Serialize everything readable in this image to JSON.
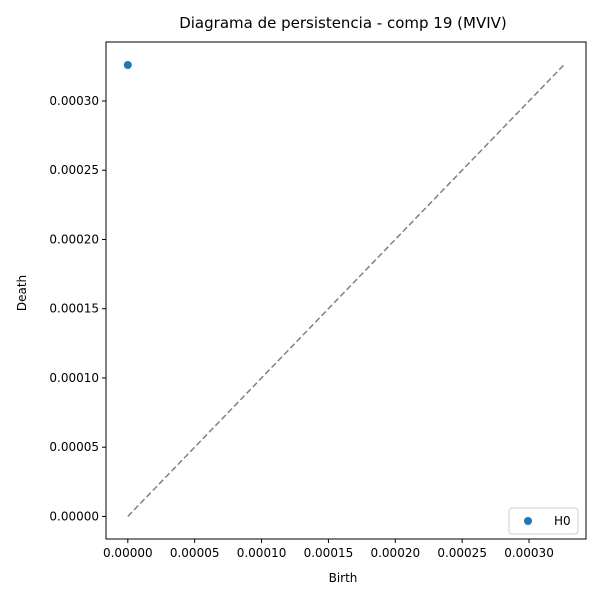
{
  "chart_data": {
    "type": "scatter",
    "title": "Diagrama de persistencia - comp 19 (MVIV)",
    "xlabel": "Birth",
    "ylabel": "Death",
    "xlim": [
      -1.63e-05,
      0.0003426
    ],
    "ylim": [
      -1.63e-05,
      0.0003426
    ],
    "x_ticks": [
      0,
      5e-05,
      0.0001,
      0.00015,
      0.0002,
      0.00025,
      0.0003
    ],
    "x_tick_labels": [
      "0.00000",
      "0.00005",
      "0.00010",
      "0.00015",
      "0.00020",
      "0.00025",
      "0.00030"
    ],
    "y_ticks": [
      0,
      5e-05,
      0.0001,
      0.00015,
      0.0002,
      0.00025,
      0.0003
    ],
    "y_tick_labels": [
      "0.00000",
      "0.00005",
      "0.00010",
      "0.00015",
      "0.00020",
      "0.00025",
      "0.00030"
    ],
    "grid": false,
    "legend_position": "lower-right",
    "series": [
      {
        "name": "H0",
        "color": "#1f77b4",
        "points": [
          {
            "x": 0.0,
            "y": 0.000326
          }
        ]
      }
    ],
    "reference_line": {
      "style": "dashed",
      "color": "#808080",
      "from": [
        0.0,
        0.0
      ],
      "to": [
        0.000326,
        0.000326
      ]
    }
  }
}
